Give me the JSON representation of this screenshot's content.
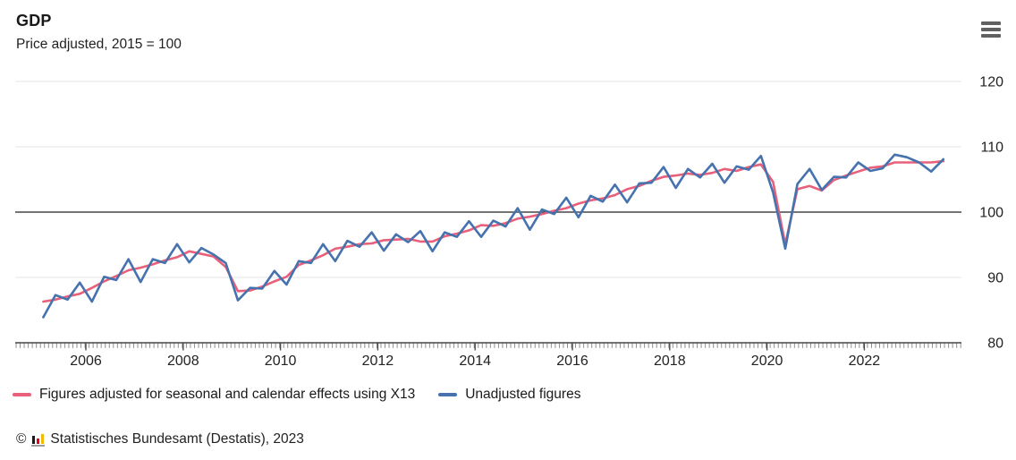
{
  "header": {
    "title": "GDP",
    "subtitle": "Price adjusted, 2015 = 100"
  },
  "menu": {
    "icon": "hamburger-icon"
  },
  "chart_data": {
    "type": "line",
    "title": "GDP",
    "subtitle": "Price adjusted, 2015 = 100",
    "frequency": "quarterly",
    "x_start": "2005 Q1",
    "x_end": "2023 Q3",
    "x_tick_labels": [
      "2006",
      "2008",
      "2010",
      "2012",
      "2014",
      "2016",
      "2018",
      "2020",
      "2022"
    ],
    "y_ticks": [
      80,
      90,
      100,
      110,
      120
    ],
    "ylim": [
      78,
      122
    ],
    "baseline_value": 100,
    "grid": "horizontal",
    "legend_position": "bottom-left",
    "x": [
      "2005 Q1",
      "2005 Q2",
      "2005 Q3",
      "2005 Q4",
      "2006 Q1",
      "2006 Q2",
      "2006 Q3",
      "2006 Q4",
      "2007 Q1",
      "2007 Q2",
      "2007 Q3",
      "2007 Q4",
      "2008 Q1",
      "2008 Q2",
      "2008 Q3",
      "2008 Q4",
      "2009 Q1",
      "2009 Q2",
      "2009 Q3",
      "2009 Q4",
      "2010 Q1",
      "2010 Q2",
      "2010 Q3",
      "2010 Q4",
      "2011 Q1",
      "2011 Q2",
      "2011 Q3",
      "2011 Q4",
      "2012 Q1",
      "2012 Q2",
      "2012 Q3",
      "2012 Q4",
      "2013 Q1",
      "2013 Q2",
      "2013 Q3",
      "2013 Q4",
      "2014 Q1",
      "2014 Q2",
      "2014 Q3",
      "2014 Q4",
      "2015 Q1",
      "2015 Q2",
      "2015 Q3",
      "2015 Q4",
      "2016 Q1",
      "2016 Q2",
      "2016 Q3",
      "2016 Q4",
      "2017 Q1",
      "2017 Q2",
      "2017 Q3",
      "2017 Q4",
      "2018 Q1",
      "2018 Q2",
      "2018 Q3",
      "2018 Q4",
      "2019 Q1",
      "2019 Q2",
      "2019 Q3",
      "2019 Q4",
      "2020 Q1",
      "2020 Q2",
      "2020 Q3",
      "2020 Q4",
      "2021 Q1",
      "2021 Q2",
      "2021 Q3",
      "2021 Q4",
      "2022 Q1",
      "2022 Q2",
      "2022 Q3",
      "2022 Q4",
      "2023 Q1",
      "2023 Q2",
      "2023 Q3"
    ],
    "series": [
      {
        "name": "Figures adjusted for seasonal and calendar effects using X13",
        "color": "#e8607a",
        "values": [
          86.3,
          86.6,
          87.1,
          87.5,
          88.4,
          89.4,
          90.2,
          91.1,
          91.5,
          92.0,
          92.6,
          93.1,
          94.0,
          93.6,
          93.2,
          91.6,
          87.9,
          88.0,
          88.6,
          89.4,
          90.1,
          91.9,
          92.6,
          93.4,
          94.4,
          94.7,
          95.1,
          95.2,
          95.7,
          95.8,
          95.9,
          95.5,
          95.5,
          96.3,
          96.7,
          97.2,
          98.0,
          97.9,
          98.3,
          99.0,
          99.3,
          99.7,
          100.2,
          100.6,
          101.3,
          101.8,
          102.1,
          102.6,
          103.5,
          104.0,
          104.8,
          105.4,
          105.6,
          105.9,
          105.7,
          106.0,
          106.6,
          106.3,
          106.9,
          107.3,
          104.6,
          95.1,
          103.5,
          104.0,
          103.3,
          104.9,
          105.6,
          106.2,
          106.8,
          107.0,
          107.6,
          107.6,
          107.6,
          107.6,
          107.8
        ]
      },
      {
        "name": "Unadjusted figures",
        "color": "#4672ae",
        "values": [
          83.9,
          87.3,
          86.6,
          89.2,
          86.3,
          90.1,
          89.6,
          92.8,
          89.3,
          92.8,
          92.2,
          95.1,
          92.3,
          94.5,
          93.5,
          92.2,
          86.5,
          88.4,
          88.3,
          91.0,
          88.9,
          92.5,
          92.2,
          95.1,
          92.5,
          95.6,
          94.7,
          96.9,
          94.1,
          96.6,
          95.4,
          97.1,
          94.0,
          96.9,
          96.2,
          98.6,
          96.2,
          98.7,
          97.8,
          100.6,
          97.3,
          100.4,
          99.7,
          102.2,
          99.2,
          102.5,
          101.6,
          104.2,
          101.5,
          104.4,
          104.5,
          106.9,
          103.7,
          106.6,
          105.3,
          107.4,
          104.5,
          107.0,
          106.5,
          108.6,
          103.0,
          94.4,
          104.3,
          106.6,
          103.4,
          105.4,
          105.3,
          107.6,
          106.3,
          106.7,
          108.8,
          108.4,
          107.6,
          106.2,
          108.1
        ]
      }
    ]
  },
  "legend": {
    "items": [
      {
        "label": "Figures adjusted for seasonal and calendar effects using X13",
        "color": "#e8607a"
      },
      {
        "label": "Unadjusted figures",
        "color": "#4672ae"
      }
    ]
  },
  "footer": {
    "copyright_symbol": "©",
    "source": "Statistisches Bundesamt (Destatis), 2023",
    "logo": "destatis-bars-icon"
  },
  "colors": {
    "adjusted_line": "#e8607a",
    "unadjusted_line": "#4672ae",
    "gridline": "#e4e4e4",
    "baseline": "#222222",
    "axis_text": "#222222"
  }
}
